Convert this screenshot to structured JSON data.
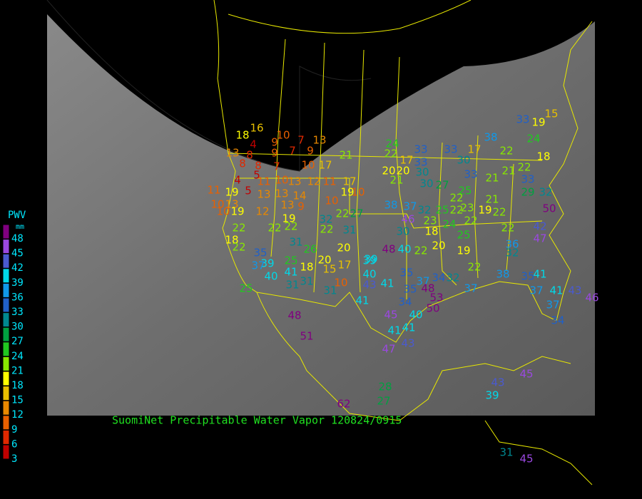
{
  "title": "SuomiNet Precipitable Water Vapor 120824/0915",
  "legend": {
    "title": "PWV",
    "unit": "mm",
    "ticks": [
      48,
      45,
      42,
      39,
      36,
      33,
      30,
      27,
      24,
      21,
      18,
      15,
      12,
      9,
      6,
      3
    ],
    "colors": [
      "#800080",
      "#9a48e0",
      "#4a5ad0",
      "#00d8e8",
      "#1098e8",
      "#2060c8",
      "#008890",
      "#00a040",
      "#20c820",
      "#88e800",
      "#ffff00",
      "#e8c000",
      "#e88800",
      "#e86000",
      "#e02800",
      "#c00000"
    ]
  },
  "stations": {
    "values": [
      16,
      18,
      4,
      10,
      7,
      13,
      9,
      7,
      9,
      13,
      8,
      9,
      8,
      8,
      7,
      5,
      10,
      17,
      17,
      4,
      11,
      10,
      13,
      12,
      11,
      11,
      19,
      5,
      13,
      13,
      14,
      10,
      19,
      10,
      10,
      13,
      10,
      19,
      12,
      13,
      9,
      19,
      21,
      24,
      22,
      17,
      33,
      33,
      20,
      20,
      30,
      21,
      30,
      27,
      33,
      30,
      17,
      38,
      22,
      33,
      19,
      24,
      15,
      18,
      22,
      33,
      21,
      21,
      33,
      32,
      50,
      29,
      25,
      22,
      21,
      22,
      23,
      19,
      22,
      38,
      37,
      32,
      25,
      46,
      23,
      24,
      22,
      22,
      42,
      22,
      22,
      22,
      32,
      22,
      31,
      22,
      27,
      30,
      18,
      25,
      31,
      18,
      22,
      26,
      20,
      39,
      48,
      40,
      22,
      20,
      19,
      36,
      47,
      32,
      35,
      39,
      25,
      18,
      20,
      17,
      37,
      40,
      41,
      31,
      15,
      39,
      40,
      35,
      37,
      34,
      32,
      22,
      38,
      35,
      41,
      25,
      31,
      10,
      31,
      43,
      41,
      35,
      48,
      53,
      50,
      37,
      37,
      41,
      43,
      37,
      34,
      41,
      34,
      45,
      40,
      48,
      51,
      41,
      41,
      47,
      43,
      45,
      43,
      39,
      28,
      27,
      62,
      31,
      45,
      46
    ]
  }
}
